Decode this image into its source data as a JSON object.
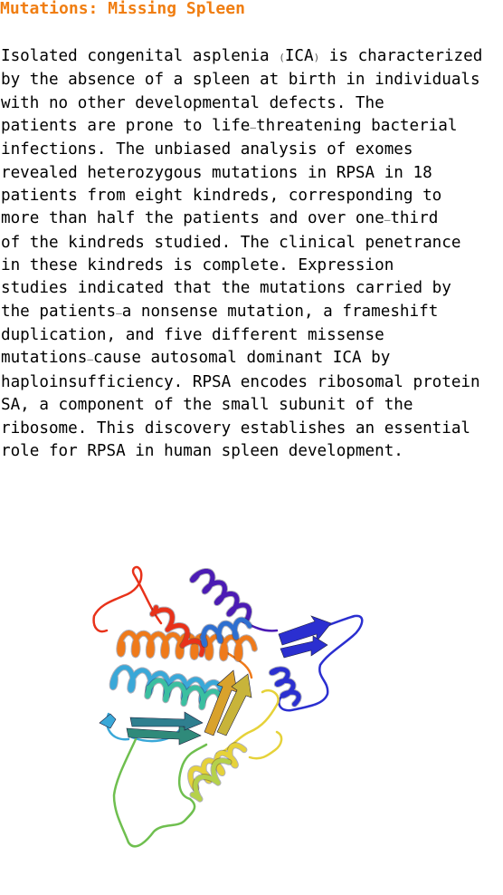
{
  "article": {
    "title": "Mutations: Missing Spleen",
    "title_color": "#f07e12",
    "abstract_lines": [
      "Isolated congenital asplenia ",
      "(",
      "ICA",
      ")",
      " is characterized",
      "by the absence of a spleen at birth in individuals",
      "with no other developmental defects. The",
      "patients are prone to life",
      "–",
      "threatening bacterial",
      "infections. The unbiased analysis of exomes",
      "revealed heterozygous mutations in RPSA in 18",
      "patients from eight kindreds, corresponding to",
      "more than half the patients and over one",
      "–",
      "third",
      "of the kindreds studied. The clinical penetrance",
      "in these kindreds is complete. Expression",
      "studies indicated that the mutations carried by",
      "the patients",
      "—",
      "a nonsense mutation, a frameshift",
      "duplication, and five different missense",
      "mutations",
      "—",
      "cause autosomal dominant ICA by",
      "haploinsufficiency. RPSA encodes ribosomal protein",
      "SA, a component of the small subunit of the",
      "ribosome. This discovery establishes an essential",
      "role for RPSA in human spleen development."
    ]
  },
  "figure": {
    "icon": "protein-ribbon-structure-icon",
    "colors": [
      "#4b1bb4",
      "#2b2fd0",
      "#2e6fd0",
      "#3aa8d8",
      "#3bbfa0",
      "#6fbf4f",
      "#b5d14a",
      "#e6d23a",
      "#f0a93a",
      "#ef7a1a",
      "#e8321a"
    ]
  }
}
